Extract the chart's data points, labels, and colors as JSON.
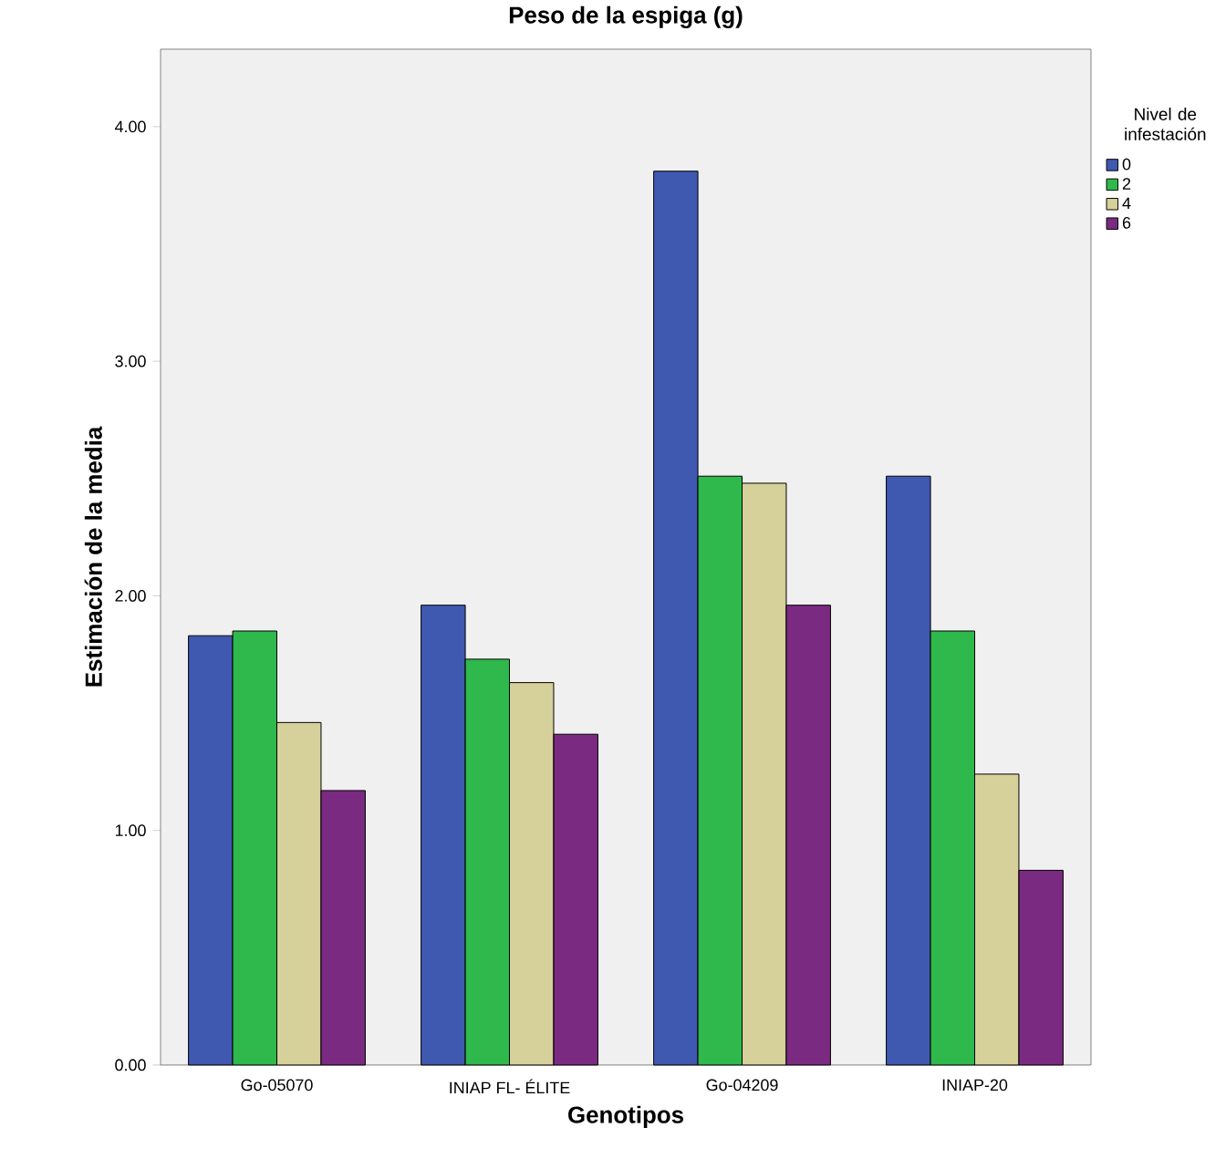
{
  "chart_data": {
    "type": "bar",
    "title": "Peso de la espiga (g)",
    "xlabel": "Genotipos",
    "ylabel": "Estimación de la media",
    "legend_title": "Nivel de infestación",
    "categories": [
      "Go-05070",
      "INIAP FL- ÉLITE",
      "Go-04209",
      "INIAP-20"
    ],
    "series": [
      {
        "name": "0",
        "color": "#3f58b0",
        "values": [
          1.83,
          1.96,
          3.81,
          2.51
        ]
      },
      {
        "name": "2",
        "color": "#2fb84c",
        "values": [
          1.85,
          1.73,
          2.51,
          1.85
        ]
      },
      {
        "name": "4",
        "color": "#d6d09a",
        "values": [
          1.46,
          1.63,
          2.48,
          1.24
        ]
      },
      {
        "name": "6",
        "color": "#7b2a81",
        "values": [
          1.17,
          1.41,
          1.96,
          0.83
        ]
      }
    ],
    "ylim": [
      0,
      4.33
    ],
    "yticks": [
      {
        "value": 0,
        "label": "0.00"
      },
      {
        "value": 1,
        "label": "1.00"
      },
      {
        "value": 2,
        "label": "2.00"
      },
      {
        "value": 3,
        "label": "3.00"
      },
      {
        "value": 4,
        "label": "4.00"
      }
    ],
    "grid": false,
    "legend": "top right"
  }
}
